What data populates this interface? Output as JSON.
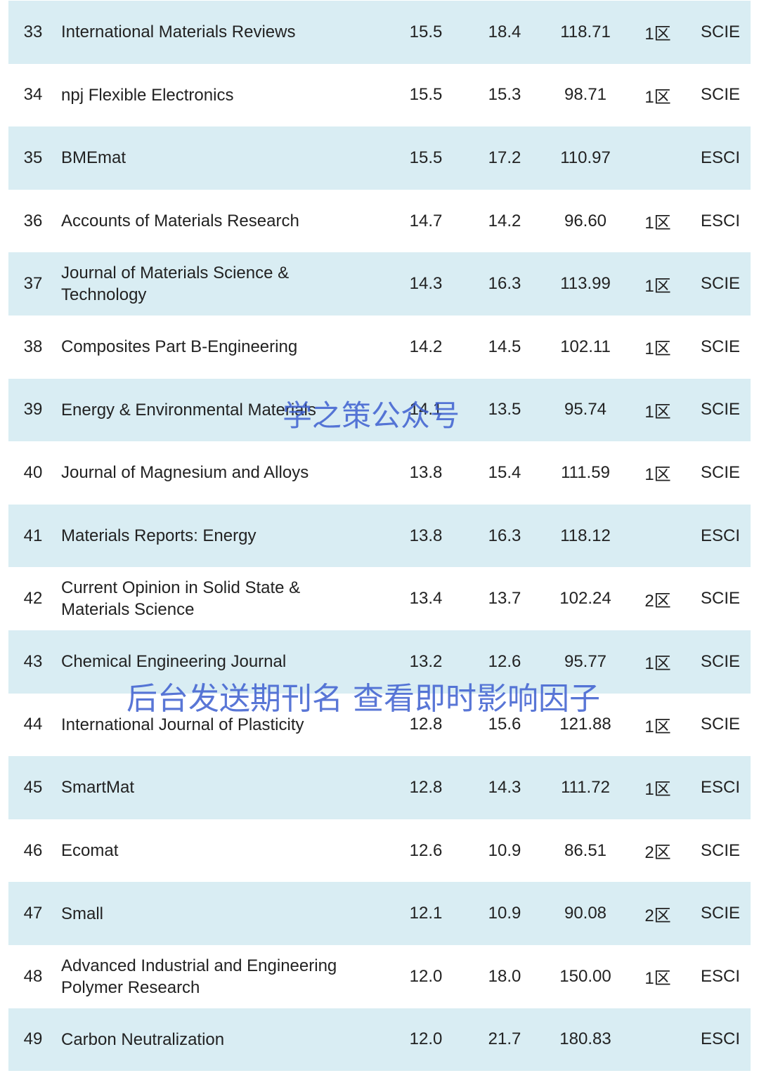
{
  "table": {
    "rows": [
      [
        "33",
        "International Materials Reviews",
        "15.5",
        "18.4",
        "118.71",
        "1区",
        "SCIE"
      ],
      [
        "34",
        "npj Flexible Electronics",
        "15.5",
        "15.3",
        "98.71",
        "1区",
        "SCIE"
      ],
      [
        "35",
        "BMEmat",
        "15.5",
        "17.2",
        "110.97",
        null,
        "ESCI"
      ],
      [
        "36",
        "Accounts of Materials Research",
        "14.7",
        "14.2",
        "96.60",
        "1区",
        "ESCI"
      ],
      [
        "37",
        "Journal of Materials Science & Technology",
        "14.3",
        "16.3",
        "113.99",
        "1区",
        "SCIE"
      ],
      [
        "38",
        "Composites Part B-Engineering",
        "14.2",
        "14.5",
        "102.11",
        "1区",
        "SCIE"
      ],
      [
        "39",
        "Energy & Environmental Materials",
        "14.1",
        "13.5",
        "95.74",
        "1区",
        "SCIE"
      ],
      [
        "40",
        "Journal of Magnesium and Alloys",
        "13.8",
        "15.4",
        "111.59",
        "1区",
        "SCIE"
      ],
      [
        "41",
        "Materials Reports: Energy",
        "13.8",
        "16.3",
        "118.12",
        null,
        "ESCI"
      ],
      [
        "42",
        "Current Opinion in Solid State & Materials Science",
        "13.4",
        "13.7",
        "102.24",
        "2区",
        "SCIE"
      ],
      [
        "43",
        "Chemical Engineering Journal",
        "13.2",
        "12.6",
        "95.77",
        "1区",
        "SCIE"
      ],
      [
        "44",
        "International Journal of Plasticity",
        "12.8",
        "15.6",
        "121.88",
        "1区",
        "SCIE"
      ],
      [
        "45",
        "SmartMat",
        "12.8",
        "14.3",
        "111.72",
        "1区",
        "ESCI"
      ],
      [
        "46",
        "Ecomat",
        "12.6",
        "10.9",
        "86.51",
        "2区",
        "SCIE"
      ],
      [
        "47",
        "Small",
        "12.1",
        "10.9",
        "90.08",
        "2区",
        "SCIE"
      ],
      [
        "48",
        "Advanced Industrial and Engineering Polymer Research",
        "12.0",
        "18.0",
        "150.00",
        "1区",
        "ESCI"
      ],
      [
        "49",
        "Carbon Neutralization",
        "12.0",
        "21.7",
        "180.83",
        null,
        "ESCI"
      ]
    ]
  },
  "watermarks": [
    "学之策公众号",
    "后台发送期刊名 查看即时影响因子"
  ]
}
